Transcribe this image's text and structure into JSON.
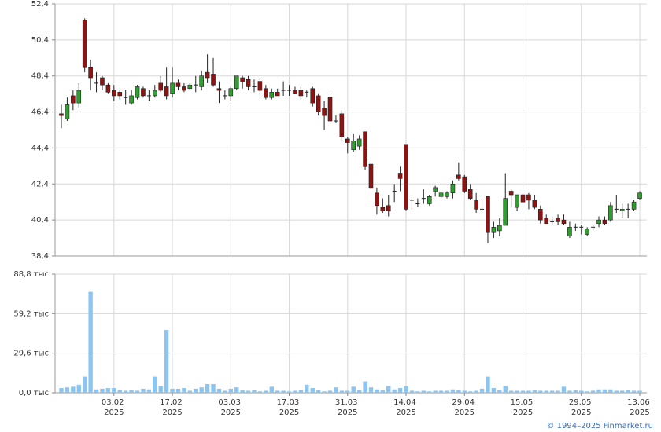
{
  "chart_data": [
    {
      "type": "candlestick",
      "open": [
        46.3,
        46.0,
        47.3,
        46.9,
        51.5,
        48.9,
        48.0,
        48.3,
        47.9,
        47.6,
        47.5,
        47.2,
        46.9,
        47.2,
        47.7,
        47.3,
        47.3,
        48.0,
        47.8,
        47.4,
        48.0,
        47.8,
        47.7,
        47.9,
        47.8,
        48.6,
        48.5,
        47.7,
        47.3,
        47.3,
        47.7,
        48.3,
        48.2,
        47.8,
        48.1,
        47.7,
        47.2,
        47.5,
        47.6,
        47.6,
        47.6,
        47.6,
        47.5,
        47.7,
        47.3,
        46.6,
        47.2,
        45.9,
        46.3,
        44.9,
        44.3,
        44.5,
        45.3,
        43.5,
        41.9,
        41.1,
        41.2,
        42.0,
        43.0,
        44.6,
        41.5,
        41.3,
        41.6,
        41.3,
        42.0,
        41.7,
        41.7,
        41.9,
        42.9,
        42.8,
        42.1,
        41.5,
        41.0,
        41.7,
        39.7,
        39.8,
        40.1,
        42.0,
        41.1,
        41.8,
        41.8,
        41.5,
        41.0,
        40.5,
        40.3,
        40.5,
        40.4,
        39.5,
        40.0,
        40.0,
        39.6,
        40.0,
        40.2,
        40.4,
        40.4,
        41.0,
        40.9,
        41.0,
        41.0,
        41.6
      ],
      "high": [
        46.8,
        47.2,
        47.6,
        48.0,
        51.6,
        49.3,
        48.6,
        48.4,
        48.0,
        47.9,
        47.6,
        47.6,
        47.6,
        47.9,
        47.8,
        47.6,
        47.9,
        48.4,
        48.9,
        48.9,
        48.2,
        48.0,
        48.0,
        48.4,
        48.7,
        49.6,
        49.4,
        48.1,
        47.6,
        47.8,
        48.4,
        48.4,
        48.4,
        48.2,
        48.3,
        47.9,
        47.7,
        47.7,
        48.1,
        47.9,
        47.8,
        47.8,
        47.6,
        47.8,
        47.4,
        47.0,
        47.4,
        46.2,
        46.5,
        45.0,
        45.2,
        45.1,
        45.3,
        43.6,
        42.2,
        41.6,
        41.8,
        42.4,
        43.4,
        44.6,
        41.8,
        41.6,
        42.1,
        41.8,
        42.3,
        42.0,
        42.0,
        42.6,
        43.6,
        42.9,
        42.4,
        41.9,
        41.5,
        41.7,
        40.3,
        40.5,
        43.0,
        42.1,
        41.8,
        41.9,
        41.9,
        41.8,
        41.2,
        40.7,
        40.6,
        40.7,
        40.7,
        40.3,
        40.2,
        40.1,
        40.0,
        40.1,
        40.6,
        40.6,
        41.4,
        41.8,
        41.3,
        41.3,
        41.5,
        42.0
      ],
      "low": [
        45.5,
        45.9,
        46.5,
        46.6,
        48.6,
        47.6,
        47.5,
        47.6,
        47.4,
        47.0,
        47.1,
        46.8,
        46.8,
        47.1,
        47.2,
        47.0,
        47.2,
        47.5,
        47.1,
        47.2,
        47.6,
        47.5,
        47.6,
        47.5,
        47.6,
        48.0,
        47.8,
        46.9,
        47.1,
        47.0,
        47.6,
        47.7,
        47.6,
        47.5,
        47.3,
        47.1,
        47.1,
        47.3,
        47.3,
        47.3,
        47.4,
        47.1,
        47.2,
        46.7,
        46.2,
        45.4,
        45.8,
        45.8,
        44.8,
        44.1,
        44.2,
        44.3,
        43.2,
        41.8,
        40.7,
        40.8,
        40.6,
        41.4,
        42.0,
        40.9,
        41.0,
        41.1,
        41.3,
        41.2,
        41.7,
        41.6,
        41.6,
        41.6,
        42.6,
        41.9,
        41.5,
        40.8,
        40.8,
        39.1,
        39.4,
        39.5,
        40.1,
        41.1,
        40.9,
        41.3,
        41.0,
        41.0,
        40.2,
        40.2,
        40.1,
        40.1,
        40.1,
        39.4,
        39.8,
        39.6,
        39.5,
        39.8,
        40.0,
        40.1,
        40.3,
        40.8,
        40.5,
        40.5,
        40.9,
        41.5
      ],
      "close": [
        46.2,
        46.8,
        46.9,
        47.6,
        48.9,
        48.3,
        48.0,
        47.9,
        47.5,
        47.3,
        47.3,
        47.2,
        47.3,
        47.8,
        47.3,
        47.3,
        47.6,
        47.6,
        47.3,
        48.0,
        47.8,
        47.6,
        47.9,
        47.9,
        48.4,
        48.3,
        47.9,
        47.6,
        47.3,
        47.7,
        48.4,
        48.1,
        47.8,
        47.8,
        47.6,
        47.2,
        47.5,
        47.3,
        47.6,
        47.6,
        47.4,
        47.3,
        47.5,
        46.9,
        46.4,
        46.2,
        45.9,
        45.9,
        45.0,
        44.7,
        44.8,
        44.9,
        43.4,
        42.2,
        41.2,
        40.9,
        40.9,
        42.0,
        42.7,
        41.0,
        41.5,
        41.3,
        41.6,
        41.7,
        42.2,
        41.9,
        41.9,
        42.4,
        42.7,
        42.0,
        41.6,
        41.0,
        41.0,
        39.7,
        40.0,
        40.1,
        41.6,
        41.8,
        41.8,
        41.4,
        41.5,
        41.1,
        40.4,
        40.2,
        40.3,
        40.3,
        40.2,
        40.0,
        40.0,
        40.0,
        39.9,
        40.0,
        40.4,
        40.2,
        41.2,
        41.0,
        41.0,
        41.0,
        41.4,
        41.9
      ],
      "up_color": "#2f9e2f",
      "down_color": "#8e1414",
      "ylim": [
        38.4,
        52.4
      ],
      "yticks": [
        {
          "value": 38.4,
          "label": "38,4"
        },
        {
          "value": 40.4,
          "label": "40,4"
        },
        {
          "value": 42.4,
          "label": "42,4"
        },
        {
          "value": 44.4,
          "label": "44,4"
        },
        {
          "value": 46.4,
          "label": "46,4"
        },
        {
          "value": 48.4,
          "label": "48,4"
        },
        {
          "value": 50.4,
          "label": "50,4"
        },
        {
          "value": 52.4,
          "label": "52,4"
        }
      ],
      "grid": true
    },
    {
      "type": "bar",
      "categories": [
        null,
        null,
        null,
        null,
        null,
        null,
        null,
        null,
        null,
        "03.02 2025",
        null,
        null,
        null,
        null,
        null,
        null,
        null,
        null,
        null,
        "17.02 2025",
        null,
        null,
        null,
        null,
        null,
        null,
        null,
        null,
        null,
        "03.03 2025",
        null,
        null,
        null,
        null,
        null,
        null,
        null,
        null,
        null,
        "17.03 2025",
        null,
        null,
        null,
        null,
        null,
        null,
        null,
        null,
        null,
        "31.03 2025",
        null,
        null,
        null,
        null,
        null,
        null,
        null,
        null,
        null,
        "14.04 2025",
        null,
        null,
        null,
        null,
        null,
        null,
        null,
        null,
        null,
        "29.04 2025",
        null,
        null,
        null,
        null,
        null,
        null,
        null,
        null,
        null,
        "15.05 2025",
        null,
        null,
        null,
        null,
        null,
        null,
        null,
        null,
        null,
        "29.05 2025",
        null,
        null,
        null,
        null,
        null,
        null,
        null,
        null,
        null,
        "13.06 2025"
      ],
      "values": [
        3.5,
        4,
        4.5,
        6,
        12,
        75.5,
        2.5,
        3,
        3.5,
        3.5,
        2,
        1.5,
        2,
        1.5,
        3,
        2.5,
        12,
        5,
        47,
        3,
        3,
        3.5,
        1.5,
        3,
        4,
        6.5,
        6.5,
        3,
        1.5,
        3,
        4,
        2,
        1.5,
        2,
        1,
        1.5,
        4.5,
        1.5,
        1.5,
        1,
        1.5,
        2,
        6,
        3.5,
        2,
        1,
        1.5,
        4,
        1.5,
        1.5,
        4.5,
        2,
        8.5,
        4,
        2.5,
        2,
        5,
        2.5,
        3.5,
        5,
        1.5,
        1,
        1.5,
        1,
        1.5,
        1.5,
        1.5,
        2.5,
        2,
        1.5,
        1,
        1.5,
        3,
        12,
        3.5,
        2,
        5,
        1.5,
        1.5,
        1.5,
        1.5,
        2,
        1.5,
        1.5,
        1.5,
        1.5,
        4.5,
        1.5,
        2,
        1.5,
        1,
        1.5,
        2.5,
        2.5,
        2.5,
        1.5,
        1.5,
        2,
        1.5,
        1.5
      ],
      "color": "#8cc6f0",
      "ylim": [
        0,
        88.8
      ],
      "yticks": [
        {
          "value": 0,
          "label": "0,0 тыс"
        },
        {
          "value": 29.6,
          "label": "29,6 тыс"
        },
        {
          "value": 59.2,
          "label": "59,2 тыс"
        },
        {
          "value": 88.8,
          "label": "88,8 тыс"
        }
      ],
      "grid": true
    }
  ],
  "credit": "© 1994–2025 Finmarket.ru"
}
